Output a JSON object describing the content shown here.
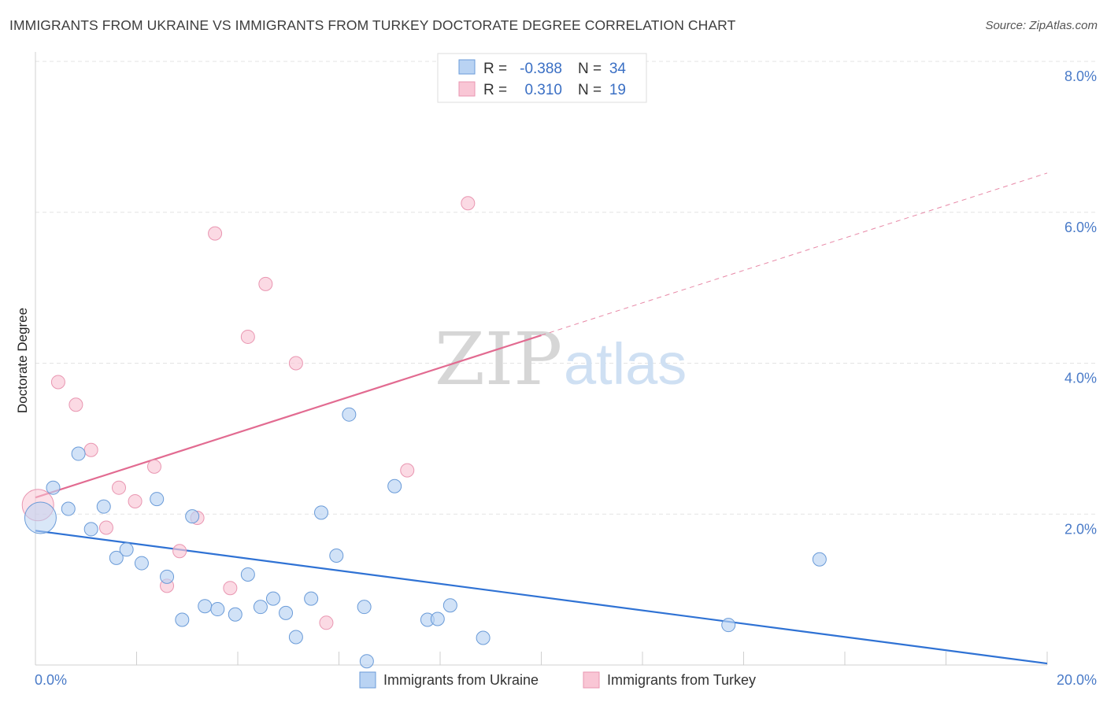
{
  "header": {
    "title": "IMMIGRANTS FROM UKRAINE VS IMMIGRANTS FROM TURKEY DOCTORATE DEGREE CORRELATION CHART",
    "source": "Source: ZipAtlas.com"
  },
  "watermark": {
    "zip": "ZIP",
    "atlas": "atlas"
  },
  "legend": {
    "rows": [
      {
        "r_label": "R = ",
        "r_value": "-0.388",
        "n_label": "N = ",
        "n_value": "34",
        "color": "#b9d3f3"
      },
      {
        "r_label": "R = ",
        "r_value": "0.310",
        "n_label": "N = ",
        "n_value": "19",
        "color": "#f9c6d5"
      }
    ]
  },
  "colors": {
    "ukraine_fill": "#b9d3f3",
    "ukraine_stroke": "#6a9bd8",
    "ukraine_line": "#2f72d4",
    "turkey_fill": "#f9c6d5",
    "turkey_stroke": "#e996b1",
    "turkey_line": "#e26b91"
  },
  "chart_data": {
    "type": "scatter",
    "title": "IMMIGRANTS FROM UKRAINE VS IMMIGRANTS FROM TURKEY DOCTORATE DEGREE CORRELATION CHART",
    "xlabel": "",
    "ylabel": "Doctorate Degree",
    "xlim": [
      0,
      20
    ],
    "ylim": [
      0,
      8
    ],
    "x_ticks": [
      "0.0%",
      "20.0%"
    ],
    "y_ticks": [
      {
        "value": 2,
        "label": "2.0%"
      },
      {
        "value": 4,
        "label": "4.0%"
      },
      {
        "value": 6,
        "label": "6.0%"
      },
      {
        "value": 8,
        "label": "8.0%"
      }
    ],
    "grid": true,
    "legend_position": "top-center",
    "series": [
      {
        "name": "Immigrants from Ukraine",
        "r": -0.388,
        "n": 34,
        "trend": {
          "x": [
            0,
            20
          ],
          "y": [
            1.78,
            0.02
          ],
          "style": "solid"
        },
        "points": [
          {
            "x": 0.1,
            "y": 1.95,
            "size": "large"
          },
          {
            "x": 0.35,
            "y": 2.35
          },
          {
            "x": 0.65,
            "y": 2.07
          },
          {
            "x": 0.85,
            "y": 2.8
          },
          {
            "x": 1.1,
            "y": 1.8
          },
          {
            "x": 1.35,
            "y": 2.1
          },
          {
            "x": 1.6,
            "y": 1.42
          },
          {
            "x": 1.8,
            "y": 1.53
          },
          {
            "x": 2.1,
            "y": 1.35
          },
          {
            "x": 2.4,
            "y": 2.2
          },
          {
            "x": 2.6,
            "y": 1.17
          },
          {
            "x": 2.9,
            "y": 0.6
          },
          {
            "x": 3.1,
            "y": 1.97
          },
          {
            "x": 3.35,
            "y": 0.78
          },
          {
            "x": 3.6,
            "y": 0.74
          },
          {
            "x": 3.95,
            "y": 0.67
          },
          {
            "x": 4.2,
            "y": 1.2
          },
          {
            "x": 4.45,
            "y": 0.77
          },
          {
            "x": 4.7,
            "y": 0.88
          },
          {
            "x": 4.95,
            "y": 0.69
          },
          {
            "x": 5.15,
            "y": 0.37
          },
          {
            "x": 5.45,
            "y": 0.88
          },
          {
            "x": 5.65,
            "y": 2.02
          },
          {
            "x": 5.95,
            "y": 1.45
          },
          {
            "x": 6.2,
            "y": 3.32
          },
          {
            "x": 6.5,
            "y": 0.77
          },
          {
            "x": 6.55,
            "y": 0.05
          },
          {
            "x": 7.1,
            "y": 2.37
          },
          {
            "x": 7.75,
            "y": 0.6
          },
          {
            "x": 7.95,
            "y": 0.61
          },
          {
            "x": 8.2,
            "y": 0.79
          },
          {
            "x": 8.85,
            "y": 0.36
          },
          {
            "x": 13.7,
            "y": 0.53
          },
          {
            "x": 15.5,
            "y": 1.4
          }
        ]
      },
      {
        "name": "Immigrants from Turkey",
        "r": 0.31,
        "n": 19,
        "trend": {
          "x": [
            0,
            10
          ],
          "y": [
            2.22,
            4.37
          ],
          "style": "solid",
          "extended": {
            "x": [
              10,
              20
            ],
            "y": [
              4.37,
              6.52
            ],
            "style": "dashed"
          }
        },
        "points": [
          {
            "x": 0.05,
            "y": 2.12,
            "size": "large"
          },
          {
            "x": 0.45,
            "y": 3.75
          },
          {
            "x": 0.8,
            "y": 3.45
          },
          {
            "x": 1.1,
            "y": 2.85
          },
          {
            "x": 1.4,
            "y": 1.82
          },
          {
            "x": 1.65,
            "y": 2.35
          },
          {
            "x": 1.97,
            "y": 2.17
          },
          {
            "x": 2.35,
            "y": 2.63
          },
          {
            "x": 2.6,
            "y": 1.05
          },
          {
            "x": 2.85,
            "y": 1.51
          },
          {
            "x": 3.2,
            "y": 1.95
          },
          {
            "x": 3.55,
            "y": 5.72
          },
          {
            "x": 3.85,
            "y": 1.02
          },
          {
            "x": 4.2,
            "y": 4.35
          },
          {
            "x": 4.55,
            "y": 5.05
          },
          {
            "x": 5.15,
            "y": 4.0
          },
          {
            "x": 5.75,
            "y": 0.56
          },
          {
            "x": 7.35,
            "y": 2.58
          },
          {
            "x": 8.55,
            "y": 6.12
          }
        ]
      }
    ]
  },
  "bottom_legend": {
    "items": [
      {
        "label": "Immigrants from Ukraine"
      },
      {
        "label": "Immigrants from Turkey"
      }
    ]
  }
}
